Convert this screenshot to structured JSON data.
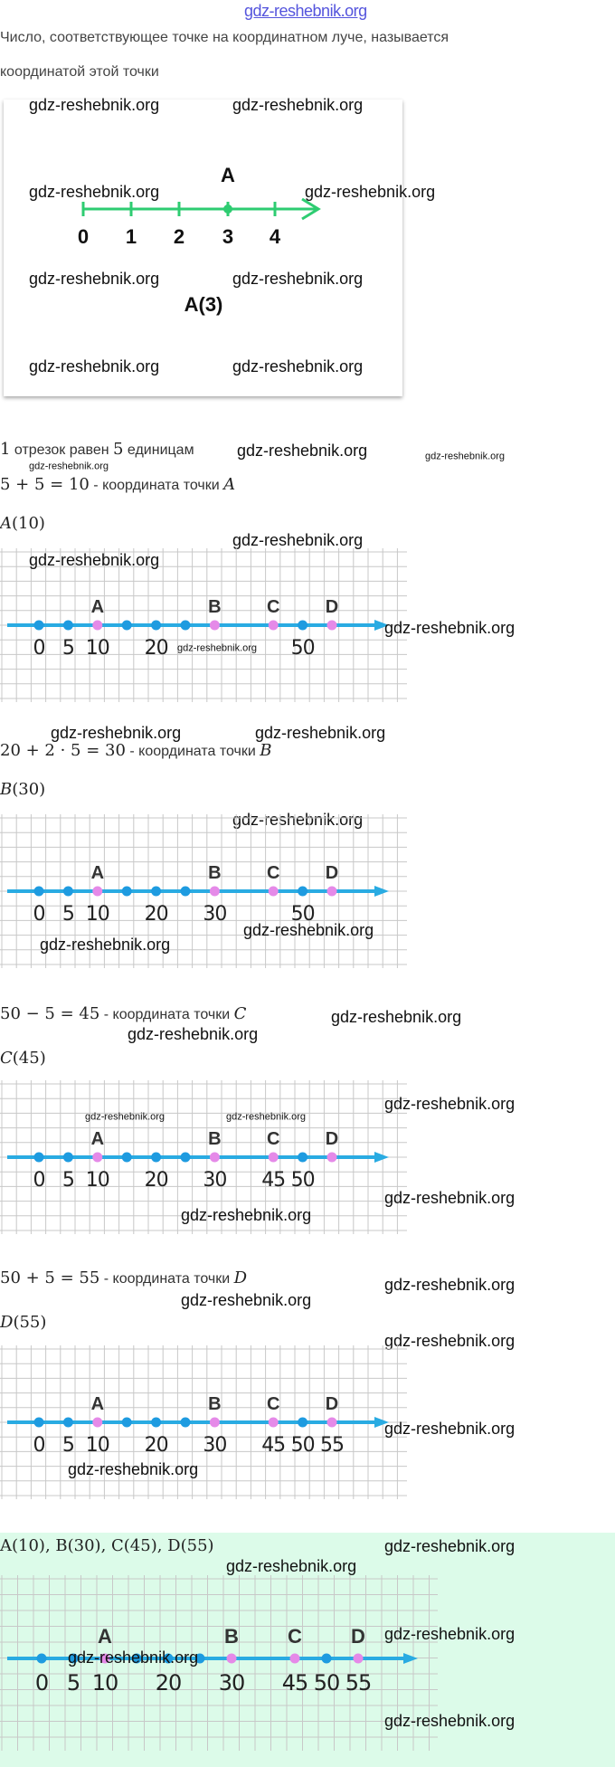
{
  "watermark": "gdz-reshebnik.org",
  "intro": {
    "line1": "Число, соответствующее точке на координатном луче, называется",
    "line2": "координатой этой точки"
  },
  "example": {
    "point_letter": "A",
    "ticks": [
      "0",
      "1",
      "2",
      "3",
      "4"
    ],
    "point_value": 3,
    "caption": "A(3)",
    "color": "#2ecc71"
  },
  "steps": {
    "segment": {
      "pre": "1",
      "mid": " отрезок равен ",
      "num": "5",
      "post": " единицам"
    },
    "a": {
      "expr": "5 + 5 = 10",
      "text": " - координата точки ",
      "letter": "A",
      "result_letter": "A",
      "result_value": "(10)"
    },
    "b": {
      "expr": "20 + 2 · 5 = 30",
      "text": " - координата точки ",
      "letter": "B",
      "result_letter": "B",
      "result_value": "(30)"
    },
    "c": {
      "expr": "50 − 5 = 45",
      "text": " - координата точки ",
      "letter": "C",
      "result_letter": "C",
      "result_value": "(45)"
    },
    "d": {
      "expr": "50 + 5 = 55",
      "text": " - координата точки ",
      "letter": "D",
      "result_letter": "D",
      "result_value": "(55)"
    }
  },
  "answer": "A(10), B(30), C(45), D(55)",
  "colors": {
    "ray": "#29abe2",
    "dot": "#1e9be0",
    "point": "#e58ae8",
    "answer_bg": "#dcfbe9"
  },
  "points": [
    {
      "letter": "A",
      "value": 10
    },
    {
      "letter": "B",
      "value": 30
    },
    {
      "letter": "C",
      "value": 45
    },
    {
      "letter": "D",
      "value": 55
    }
  ],
  "dots": [
    0,
    5,
    10,
    15,
    20,
    25,
    30,
    45,
    50,
    55
  ],
  "figures": [
    {
      "labels": [
        "0",
        "5",
        "10",
        "20",
        "50"
      ]
    },
    {
      "labels": [
        "0",
        "5",
        "10",
        "20",
        "30",
        "50"
      ]
    },
    {
      "labels": [
        "0",
        "5",
        "10",
        "20",
        "30",
        "45",
        "50"
      ]
    },
    {
      "labels": [
        "0",
        "5",
        "10",
        "20",
        "30",
        "45",
        "50",
        "55"
      ]
    },
    {
      "labels": [
        "0",
        "5",
        "10",
        "20",
        "30",
        "45",
        "50",
        "55"
      ]
    }
  ]
}
